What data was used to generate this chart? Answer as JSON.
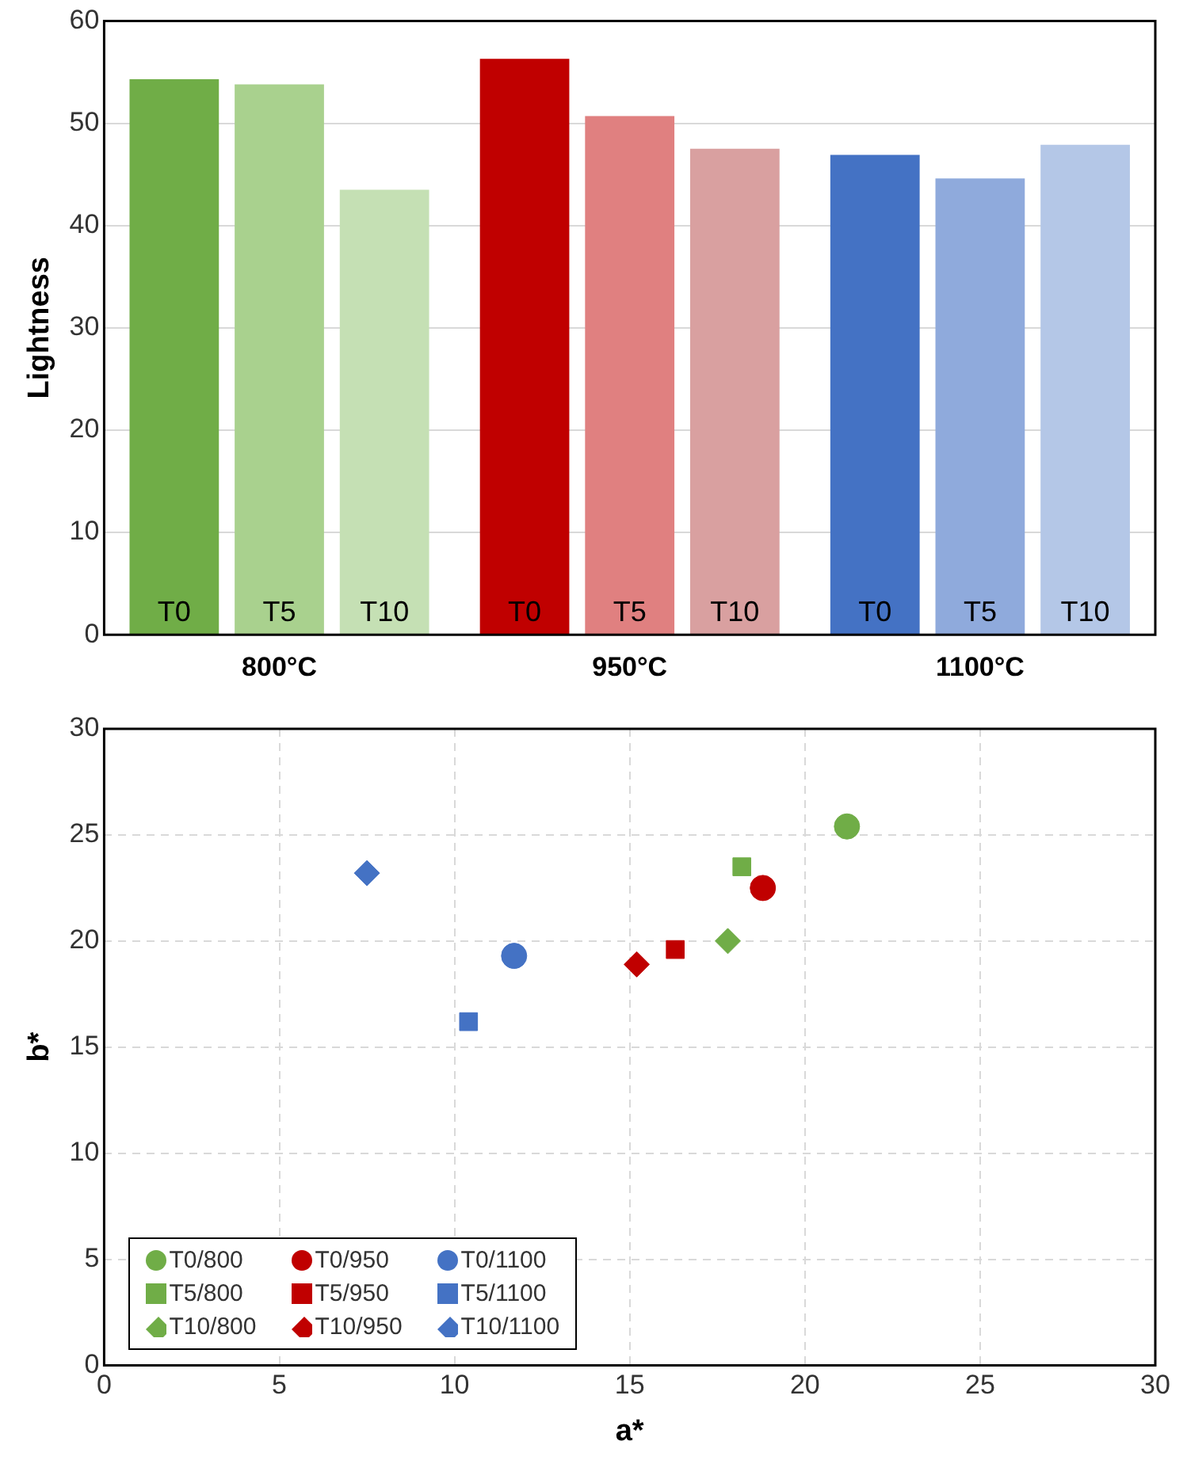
{
  "chart_data": [
    {
      "type": "bar",
      "ylabel": "Lightness",
      "categories": [
        "800°C",
        "950°C",
        "1100°C"
      ],
      "ylim": [
        0,
        60
      ],
      "yticks": [
        0,
        10,
        20,
        30,
        40,
        50,
        60
      ],
      "grid": "y",
      "series": [
        {
          "name": "T0",
          "colors": [
            "#70ad47",
            "#c00000",
            "#4472c4"
          ],
          "values": [
            54.3,
            56.3,
            46.9
          ]
        },
        {
          "name": "T5",
          "colors": [
            "#a9d18e",
            "#e08080",
            "#8faadc"
          ],
          "values": [
            53.8,
            50.7,
            44.6
          ]
        },
        {
          "name": "T10",
          "colors": [
            "#c5e0b4",
            "#d9a0a0",
            "#b4c7e7"
          ],
          "values": [
            43.5,
            47.5,
            47.9
          ]
        }
      ]
    },
    {
      "type": "scatter",
      "xlabel": "a*",
      "ylabel": "b*",
      "xlim": [
        0,
        30
      ],
      "xticks": [
        0,
        5,
        10,
        15,
        20,
        25,
        30
      ],
      "ylim": [
        0,
        30
      ],
      "yticks": [
        0,
        5,
        10,
        15,
        20,
        25,
        30
      ],
      "grid": true,
      "line_style": "dashed",
      "legend": "bottom left",
      "series": [
        {
          "name": "T0/800",
          "color": "#70ad47",
          "marker": "circle",
          "x": [
            21.2
          ],
          "values": [
            25.4
          ]
        },
        {
          "name": "T0/950",
          "color": "#c00000",
          "marker": "circle",
          "x": [
            18.8
          ],
          "values": [
            22.5
          ]
        },
        {
          "name": "T0/1100",
          "color": "#4472c4",
          "marker": "circle",
          "x": [
            11.7
          ],
          "values": [
            19.3
          ]
        },
        {
          "name": "T5/800",
          "color": "#70ad47",
          "marker": "square",
          "x": [
            18.2
          ],
          "values": [
            23.5
          ]
        },
        {
          "name": "T5/950",
          "color": "#c00000",
          "marker": "square",
          "x": [
            16.3
          ],
          "values": [
            19.6
          ]
        },
        {
          "name": "T5/1100",
          "color": "#4472c4",
          "marker": "square",
          "x": [
            10.4
          ],
          "values": [
            16.2
          ]
        },
        {
          "name": "T10/800",
          "color": "#70ad47",
          "marker": "diamond",
          "x": [
            17.8
          ],
          "values": [
            20.0
          ]
        },
        {
          "name": "T10/950",
          "color": "#c00000",
          "marker": "diamond",
          "x": [
            15.2
          ],
          "values": [
            18.9
          ]
        },
        {
          "name": "T10/1100",
          "color": "#4472c4",
          "marker": "diamond",
          "x": [
            7.5
          ],
          "values": [
            23.2
          ]
        }
      ]
    }
  ]
}
